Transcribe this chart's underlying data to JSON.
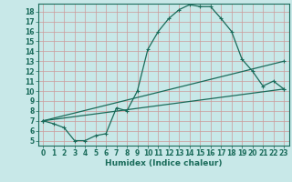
{
  "xlabel": "Humidex (Indice chaleur)",
  "background_color": "#c8e8e8",
  "grid_color": "#b0cccc",
  "line_color": "#1a6b5a",
  "red_grid_color": "#cc9999",
  "xlim": [
    -0.5,
    23.5
  ],
  "ylim": [
    4.5,
    18.8
  ],
  "xticks": [
    0,
    1,
    2,
    3,
    4,
    5,
    6,
    7,
    8,
    9,
    10,
    11,
    12,
    13,
    14,
    15,
    16,
    17,
    18,
    19,
    20,
    21,
    22,
    23
  ],
  "yticks": [
    5,
    6,
    7,
    8,
    9,
    10,
    11,
    12,
    13,
    14,
    15,
    16,
    17,
    18
  ],
  "curve1_x": [
    0,
    1,
    2,
    3,
    4,
    5,
    6,
    7,
    8,
    9,
    10,
    11,
    12,
    13,
    14,
    15,
    16,
    17,
    18,
    19,
    20,
    21,
    22,
    23
  ],
  "curve1_y": [
    7.0,
    6.7,
    6.3,
    5.0,
    5.0,
    5.5,
    5.7,
    8.3,
    8.0,
    10.0,
    14.2,
    16.0,
    17.3,
    18.2,
    18.7,
    18.5,
    18.5,
    17.3,
    16.0,
    13.2,
    12.0,
    10.5,
    11.0,
    10.2
  ],
  "curve2_x": [
    0,
    23
  ],
  "curve2_y": [
    7.0,
    13.0
  ],
  "curve3_x": [
    0,
    23
  ],
  "curve3_y": [
    7.0,
    10.2
  ],
  "tick_fontsize": 5.5,
  "xlabel_fontsize": 6.5
}
